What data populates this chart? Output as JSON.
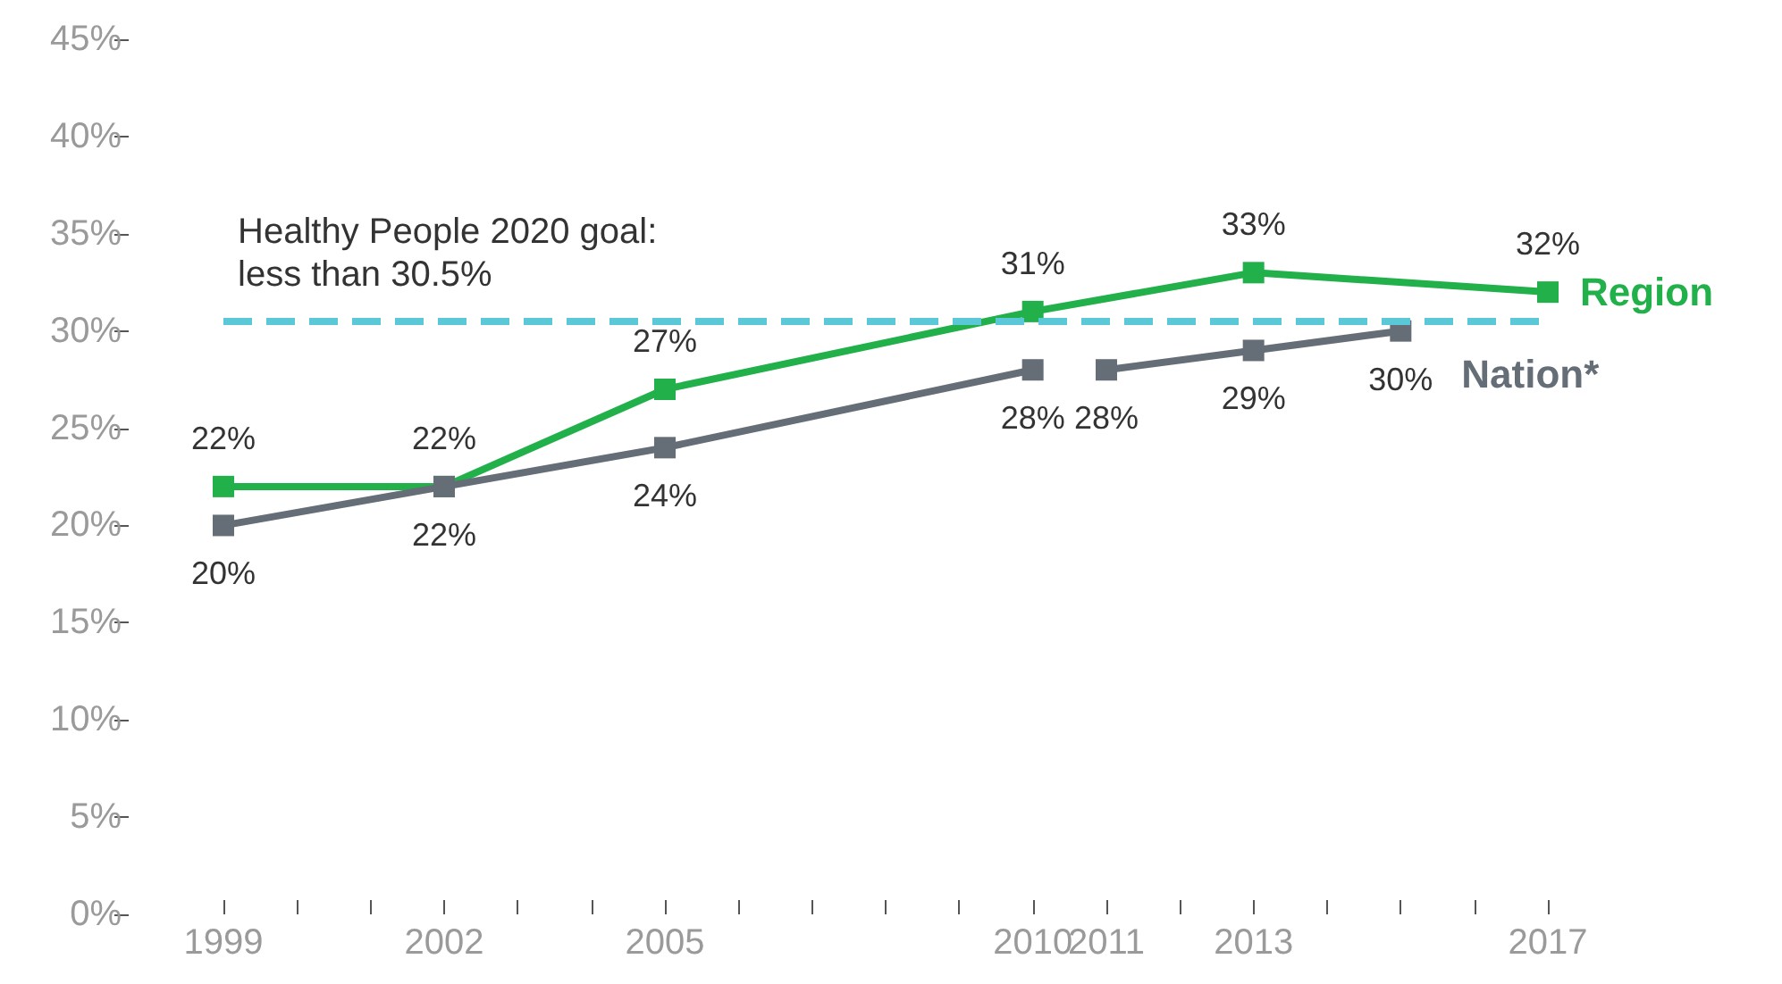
{
  "chart_data": {
    "type": "line",
    "marker": "square",
    "line_style": "solid",
    "grid": false,
    "legend": false,
    "xlim": [
      1999,
      2017
    ],
    "xticks": [
      1999,
      {
        "value": 2000,
        "label": null
      },
      {
        "value": 2001,
        "label": null
      },
      2002,
      {
        "value": 2003,
        "label": null
      },
      {
        "value": 2004,
        "label": null
      },
      2005,
      {
        "value": 2006,
        "label": null
      },
      {
        "value": 2007,
        "label": null
      },
      {
        "value": 2008,
        "label": null
      },
      {
        "value": 2009,
        "label": null
      },
      2010,
      2011,
      {
        "value": 2012,
        "label": null
      },
      2013,
      {
        "value": 2014,
        "label": null
      },
      {
        "value": 2015,
        "label": null
      },
      {
        "value": 2016,
        "label": null
      },
      2017
    ],
    "ylim": [
      0,
      45
    ],
    "yticks": [
      {
        "value": 0,
        "label": "0%"
      },
      {
        "value": 5,
        "label": "5%"
      },
      {
        "value": 10,
        "label": "10%"
      },
      {
        "value": 15,
        "label": "15%"
      },
      {
        "value": 20,
        "label": "20%"
      },
      {
        "value": 25,
        "label": "25%"
      },
      {
        "value": 30,
        "label": "30%"
      },
      {
        "value": 35,
        "label": "35%"
      },
      {
        "value": 40,
        "label": "40%"
      },
      {
        "value": 45,
        "label": "45%"
      }
    ],
    "series": [
      {
        "name": "Region",
        "color": "#22b04b",
        "x": [
          1999,
          2002,
          2005,
          2010,
          2013,
          2017
        ],
        "values": [
          22,
          22,
          27,
          31,
          33,
          32
        ],
        "value_labels": [
          "22%",
          "22%",
          "27%",
          "31%",
          "33%",
          "32%"
        ]
      },
      {
        "name": "Nation*",
        "color": "#656e77",
        "x": [
          1999,
          2002,
          2005,
          2010,
          2010.5,
          2011,
          2013,
          2015
        ],
        "values": [
          20,
          22,
          24,
          28,
          null,
          28,
          29,
          30
        ],
        "value_labels": [
          "20%",
          "22%",
          "24%",
          "28%",
          null,
          "28%",
          "29%",
          "30%"
        ]
      }
    ],
    "ref_lines": [
      {
        "axis": "y",
        "value": 30.5,
        "label": "Healthy People 2020 goal:\nless than 30.5%",
        "color": "#5bc8d8",
        "line_style": "dashed"
      }
    ]
  }
}
